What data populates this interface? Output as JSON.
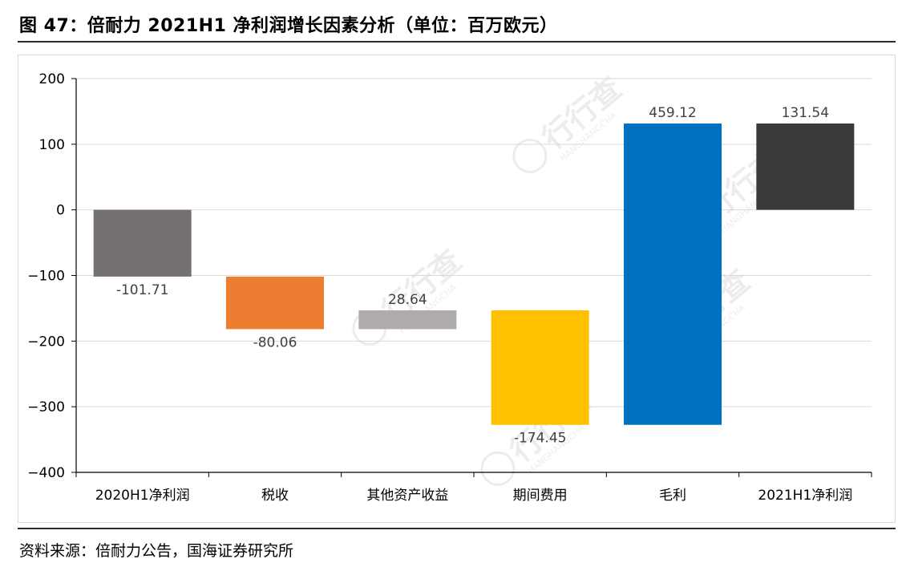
{
  "figure": {
    "title": "图 47：倍耐力 2021H1 净利润增长因素分析（单位：百万欧元）",
    "source": "资料来源：倍耐力公告，国海证券研究所"
  },
  "watermark": {
    "text": "行行查",
    "subtext": "HANGHANGCHA"
  },
  "chart_data": {
    "type": "bar",
    "subtype": "waterfall",
    "categories": [
      "2020H1净利润",
      "税收",
      "其他资产收益",
      "期间费用",
      "毛利",
      "2021H1净利润"
    ],
    "values": [
      -101.71,
      -80.06,
      28.64,
      -174.45,
      459.12,
      131.54
    ],
    "bar_kinds": [
      "total",
      "delta",
      "delta",
      "delta",
      "delta",
      "total"
    ],
    "data_labels": [
      "-101.71",
      "-80.06",
      "28.64",
      "-174.45",
      "459.12",
      "131.54"
    ],
    "colors": [
      "#767171",
      "#ED7D31",
      "#AFABAB",
      "#FFC000",
      "#0070C0",
      "#3B3838"
    ],
    "ylim": [
      -400,
      200
    ],
    "yticks": [
      200,
      100,
      0,
      -100,
      -200,
      -300,
      -400
    ],
    "ytick_labels": [
      "200",
      "100",
      "0",
      "−100",
      "−200",
      "−300",
      "−400"
    ],
    "xlabel": "",
    "ylabel": "",
    "grid": true,
    "legend": "none"
  }
}
